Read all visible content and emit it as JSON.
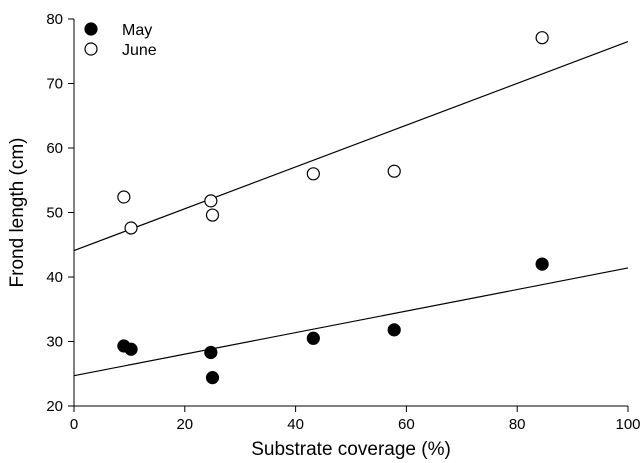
{
  "chart_data": {
    "type": "scatter",
    "title": "",
    "xlabel": "Substrate coverage (%)",
    "ylabel": "Frond length (cm)",
    "xlim": [
      0,
      100
    ],
    "ylim": [
      20,
      80
    ],
    "xticks": [
      0,
      20,
      40,
      60,
      80,
      100
    ],
    "yticks": [
      20,
      30,
      40,
      50,
      60,
      70,
      80
    ],
    "grid": false,
    "legend_position": "top-left",
    "series": [
      {
        "name": "May",
        "marker": "filled-circle",
        "color": "#000000",
        "points": [
          {
            "x": 9,
            "y": 29.3
          },
          {
            "x": 10.3,
            "y": 28.8
          },
          {
            "x": 24.7,
            "y": 28.3
          },
          {
            "x": 25,
            "y": 24.4
          },
          {
            "x": 43.2,
            "y": 30.5
          },
          {
            "x": 57.8,
            "y": 31.8
          },
          {
            "x": 84.5,
            "y": 42.0
          }
        ],
        "trendline": {
          "x": [
            0,
            100
          ],
          "y": [
            24.7,
            41.4
          ]
        }
      },
      {
        "name": "June",
        "marker": "open-circle",
        "color": "#000000",
        "points": [
          {
            "x": 9,
            "y": 52.4
          },
          {
            "x": 10.3,
            "y": 47.6
          },
          {
            "x": 24.7,
            "y": 51.8
          },
          {
            "x": 25,
            "y": 49.6
          },
          {
            "x": 43.2,
            "y": 56.0
          },
          {
            "x": 57.8,
            "y": 56.4
          },
          {
            "x": 84.5,
            "y": 77.1
          }
        ],
        "trendline": {
          "x": [
            0,
            100
          ],
          "y": [
            44.1,
            76.5
          ]
        }
      }
    ]
  }
}
